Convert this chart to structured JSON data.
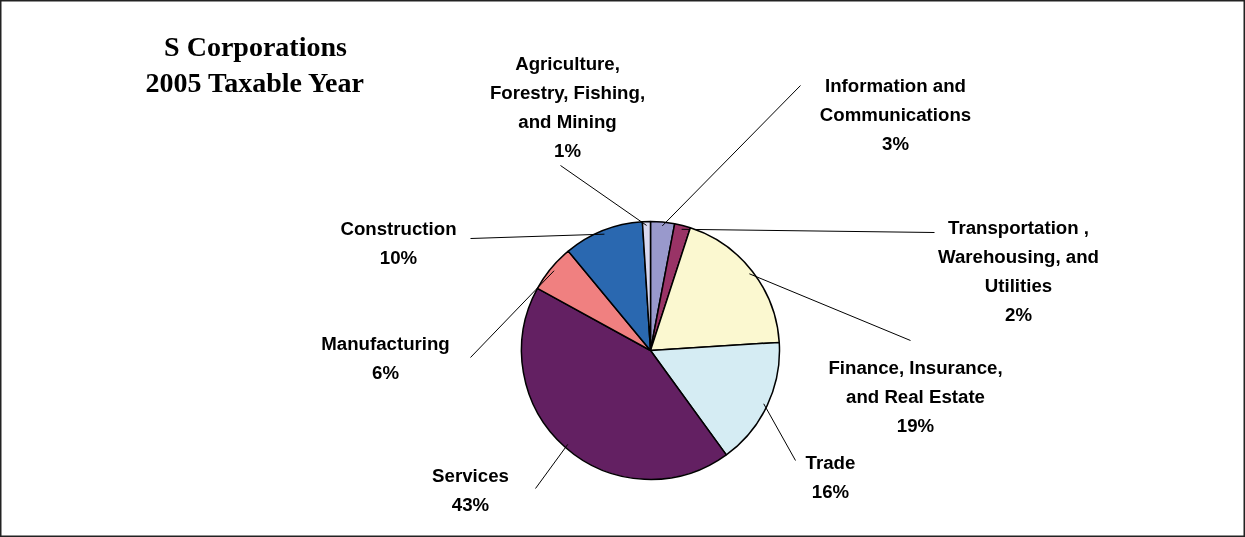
{
  "chart_data": {
    "type": "pie",
    "title": "S Corporations 2005 Taxable Year",
    "categories": [
      "Information and Communications",
      "Transportation , Warehousing, and Utilities",
      "Finance, Insurance, and Real Estate",
      "Trade",
      "Services",
      "Manufacturing",
      "Construction",
      "Agriculture, Forestry, Fishing, and Mining"
    ],
    "values": [
      3,
      2,
      19,
      16,
      43,
      6,
      10,
      1
    ],
    "colors": [
      "#9999cc",
      "#993366",
      "#fbf8d0",
      "#d5ecf3",
      "#632062",
      "#f08080",
      "#2a68b0",
      "#d8d8f0"
    ],
    "value_labels": [
      "3%",
      "2%",
      "19%",
      "16%",
      "43%",
      "6%",
      "10%",
      "1%"
    ],
    "data_labels": true
  }
}
